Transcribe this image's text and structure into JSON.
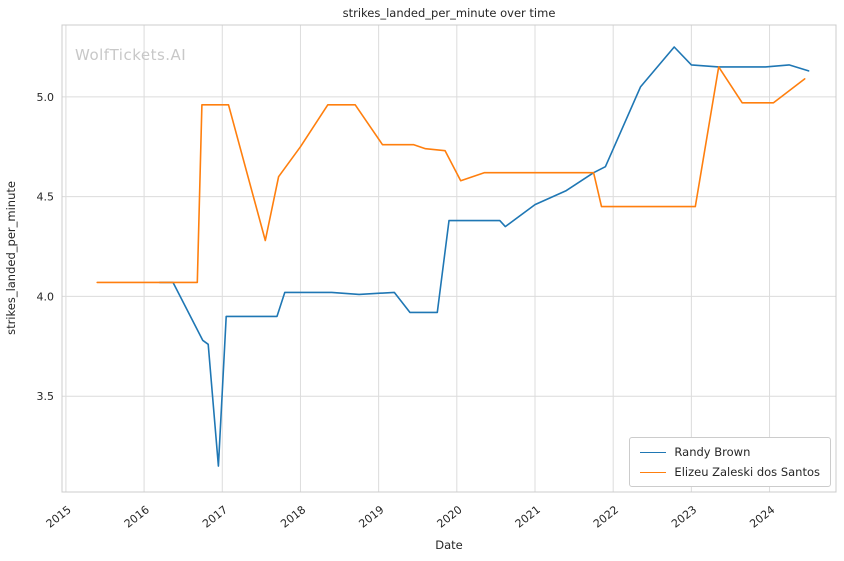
{
  "watermark": "WolfTickets.AI",
  "chart_data": {
    "type": "line",
    "title": "strikes_landed_per_minute over time",
    "xlabel": "Date",
    "ylabel": "strikes_landed_per_minute",
    "xlim": [
      2014.95,
      2024.85
    ],
    "ylim": [
      3.02,
      5.36
    ],
    "x_ticks": [
      2015,
      2016,
      2017,
      2018,
      2019,
      2020,
      2021,
      2022,
      2023,
      2024
    ],
    "y_ticks": [
      3.5,
      4.0,
      4.5,
      5.0
    ],
    "grid": true,
    "legend_position": "lower right",
    "grid_color": "#dcdcdc",
    "spine_color": "#cccccc",
    "text_color": "#262626",
    "watermark_color": "#c8c8c8",
    "series": [
      {
        "name": "Randy Brown",
        "color": "#1f77b4",
        "points": [
          [
            2016.2,
            4.07
          ],
          [
            2016.37,
            4.07
          ],
          [
            2016.75,
            3.78
          ],
          [
            2016.82,
            3.76
          ],
          [
            2016.95,
            3.15
          ],
          [
            2017.05,
            3.9
          ],
          [
            2017.7,
            3.9
          ],
          [
            2017.8,
            4.02
          ],
          [
            2018.4,
            4.02
          ],
          [
            2018.75,
            4.01
          ],
          [
            2019.2,
            4.02
          ],
          [
            2019.4,
            3.92
          ],
          [
            2019.75,
            3.92
          ],
          [
            2019.9,
            4.38
          ],
          [
            2020.3,
            4.38
          ],
          [
            2020.55,
            4.38
          ],
          [
            2020.62,
            4.35
          ],
          [
            2021.0,
            4.46
          ],
          [
            2021.4,
            4.53
          ],
          [
            2021.75,
            4.62
          ],
          [
            2021.9,
            4.65
          ],
          [
            2022.35,
            5.05
          ],
          [
            2022.78,
            5.25
          ],
          [
            2023.0,
            5.16
          ],
          [
            2023.35,
            5.15
          ],
          [
            2023.95,
            5.15
          ],
          [
            2024.25,
            5.16
          ],
          [
            2024.5,
            5.13
          ]
        ]
      },
      {
        "name": "Elizeu Zaleski dos Santos",
        "color": "#ff7f0e",
        "points": [
          [
            2015.4,
            4.07
          ],
          [
            2016.1,
            4.07
          ],
          [
            2016.68,
            4.07
          ],
          [
            2016.74,
            4.96
          ],
          [
            2017.08,
            4.96
          ],
          [
            2017.55,
            4.28
          ],
          [
            2017.72,
            4.6
          ],
          [
            2018.0,
            4.75
          ],
          [
            2018.35,
            4.96
          ],
          [
            2018.7,
            4.96
          ],
          [
            2019.05,
            4.76
          ],
          [
            2019.45,
            4.76
          ],
          [
            2019.6,
            4.74
          ],
          [
            2019.85,
            4.73
          ],
          [
            2020.05,
            4.58
          ],
          [
            2020.35,
            4.62
          ],
          [
            2021.75,
            4.62
          ],
          [
            2021.85,
            4.45
          ],
          [
            2023.05,
            4.45
          ],
          [
            2023.35,
            5.15
          ],
          [
            2023.65,
            4.97
          ],
          [
            2024.05,
            4.97
          ],
          [
            2024.45,
            5.09
          ]
        ]
      }
    ]
  }
}
